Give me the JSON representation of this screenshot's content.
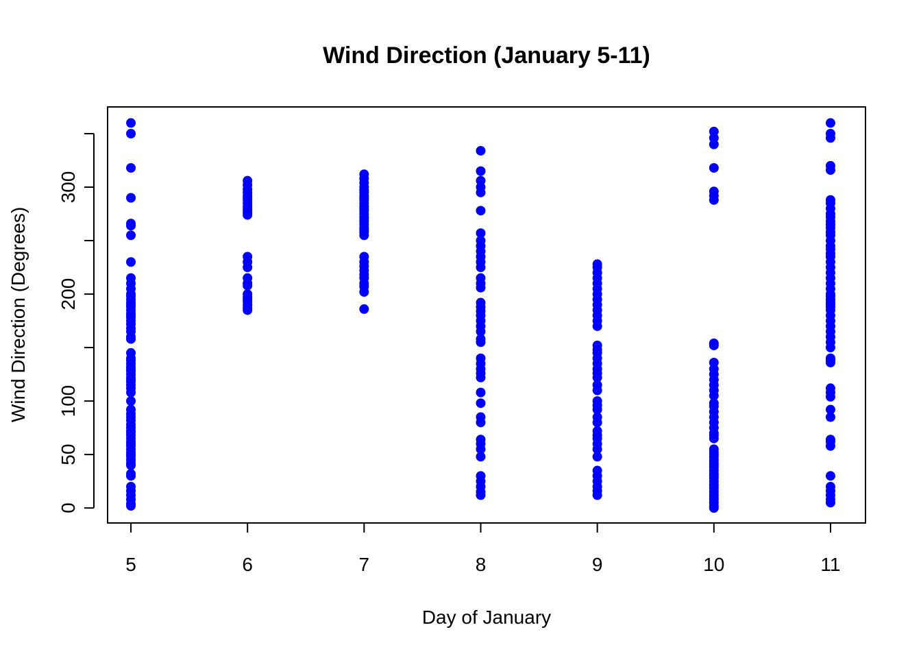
{
  "chart_data": {
    "type": "scatter",
    "title": "Wind Direction (January 5-11)",
    "xlabel": "Day of January",
    "ylabel": "Wind Direction (Degrees)",
    "xlim": [
      4.8,
      11.3
    ],
    "ylim": [
      -14,
      375
    ],
    "x_ticks": [
      5,
      6,
      7,
      8,
      9,
      10,
      11
    ],
    "y_ticks": [
      0,
      50,
      100,
      150,
      200,
      250,
      300,
      350
    ],
    "y_tick_labels": [
      "0",
      "50",
      "100",
      "",
      "200",
      "",
      "300",
      ""
    ],
    "point_color": "#0000ff",
    "grid": false,
    "legend": "none",
    "series": [
      {
        "x": 5,
        "values": [
          360,
          350,
          318,
          290,
          266,
          264,
          255,
          230,
          215,
          210,
          205,
          200,
          198,
          195,
          192,
          190,
          188,
          185,
          182,
          180,
          178,
          175,
          172,
          168,
          165,
          160,
          158,
          145,
          140,
          138,
          135,
          132,
          130,
          128,
          125,
          122,
          120,
          118,
          115,
          112,
          108,
          100,
          92,
          88,
          85,
          82,
          78,
          75,
          72,
          70,
          68,
          65,
          62,
          60,
          58,
          55,
          52,
          50,
          48,
          45,
          42,
          40,
          32,
          30,
          20,
          16,
          12,
          8,
          4,
          2
        ]
      },
      {
        "x": 6,
        "values": [
          306,
          302,
          298,
          295,
          292,
          290,
          288,
          285,
          282,
          280,
          278,
          276,
          274,
          235,
          230,
          225,
          215,
          210,
          208,
          200,
          197,
          195,
          193,
          190,
          187,
          185
        ]
      },
      {
        "x": 7,
        "values": [
          312,
          308,
          304,
          300,
          297,
          295,
          292,
          290,
          288,
          285,
          282,
          280,
          278,
          275,
          272,
          270,
          268,
          265,
          262,
          260,
          258,
          255,
          235,
          230,
          226,
          222,
          218,
          215,
          210,
          207,
          202,
          186
        ]
      },
      {
        "x": 8,
        "values": [
          334,
          315,
          306,
          300,
          295,
          278,
          257,
          250,
          245,
          240,
          235,
          230,
          225,
          215,
          210,
          206,
          192,
          188,
          184,
          180,
          175,
          170,
          165,
          158,
          155,
          140,
          135,
          130,
          126,
          122,
          108,
          98,
          85,
          80,
          64,
          60,
          55,
          48,
          30,
          25,
          20,
          15,
          12
        ]
      },
      {
        "x": 9,
        "values": [
          228,
          225,
          220,
          215,
          210,
          205,
          200,
          195,
          190,
          185,
          180,
          175,
          170,
          152,
          148,
          145,
          140,
          135,
          130,
          126,
          122,
          115,
          110,
          100,
          96,
          92,
          85,
          80,
          72,
          68,
          65,
          60,
          55,
          48,
          35,
          30,
          25,
          20,
          16,
          12
        ]
      },
      {
        "x": 10,
        "values": [
          352,
          346,
          340,
          318,
          296,
          292,
          288,
          154,
          152,
          136,
          130,
          125,
          120,
          115,
          110,
          105,
          98,
          95,
          90,
          85,
          80,
          75,
          70,
          68,
          65,
          55,
          52,
          50,
          48,
          45,
          42,
          40,
          38,
          35,
          32,
          30,
          28,
          25,
          22,
          20,
          18,
          15,
          12,
          10,
          8,
          5,
          2,
          0
        ]
      },
      {
        "x": 11,
        "values": [
          360,
          350,
          346,
          320,
          316,
          288,
          285,
          280,
          275,
          272,
          268,
          265,
          262,
          258,
          255,
          250,
          245,
          242,
          238,
          235,
          230,
          225,
          220,
          215,
          210,
          205,
          200,
          198,
          195,
          192,
          190,
          188,
          185,
          180,
          175,
          170,
          165,
          160,
          155,
          150,
          140,
          138,
          136,
          112,
          108,
          104,
          92,
          85,
          64,
          62,
          58,
          30,
          20,
          16,
          12,
          8,
          5
        ]
      }
    ]
  }
}
